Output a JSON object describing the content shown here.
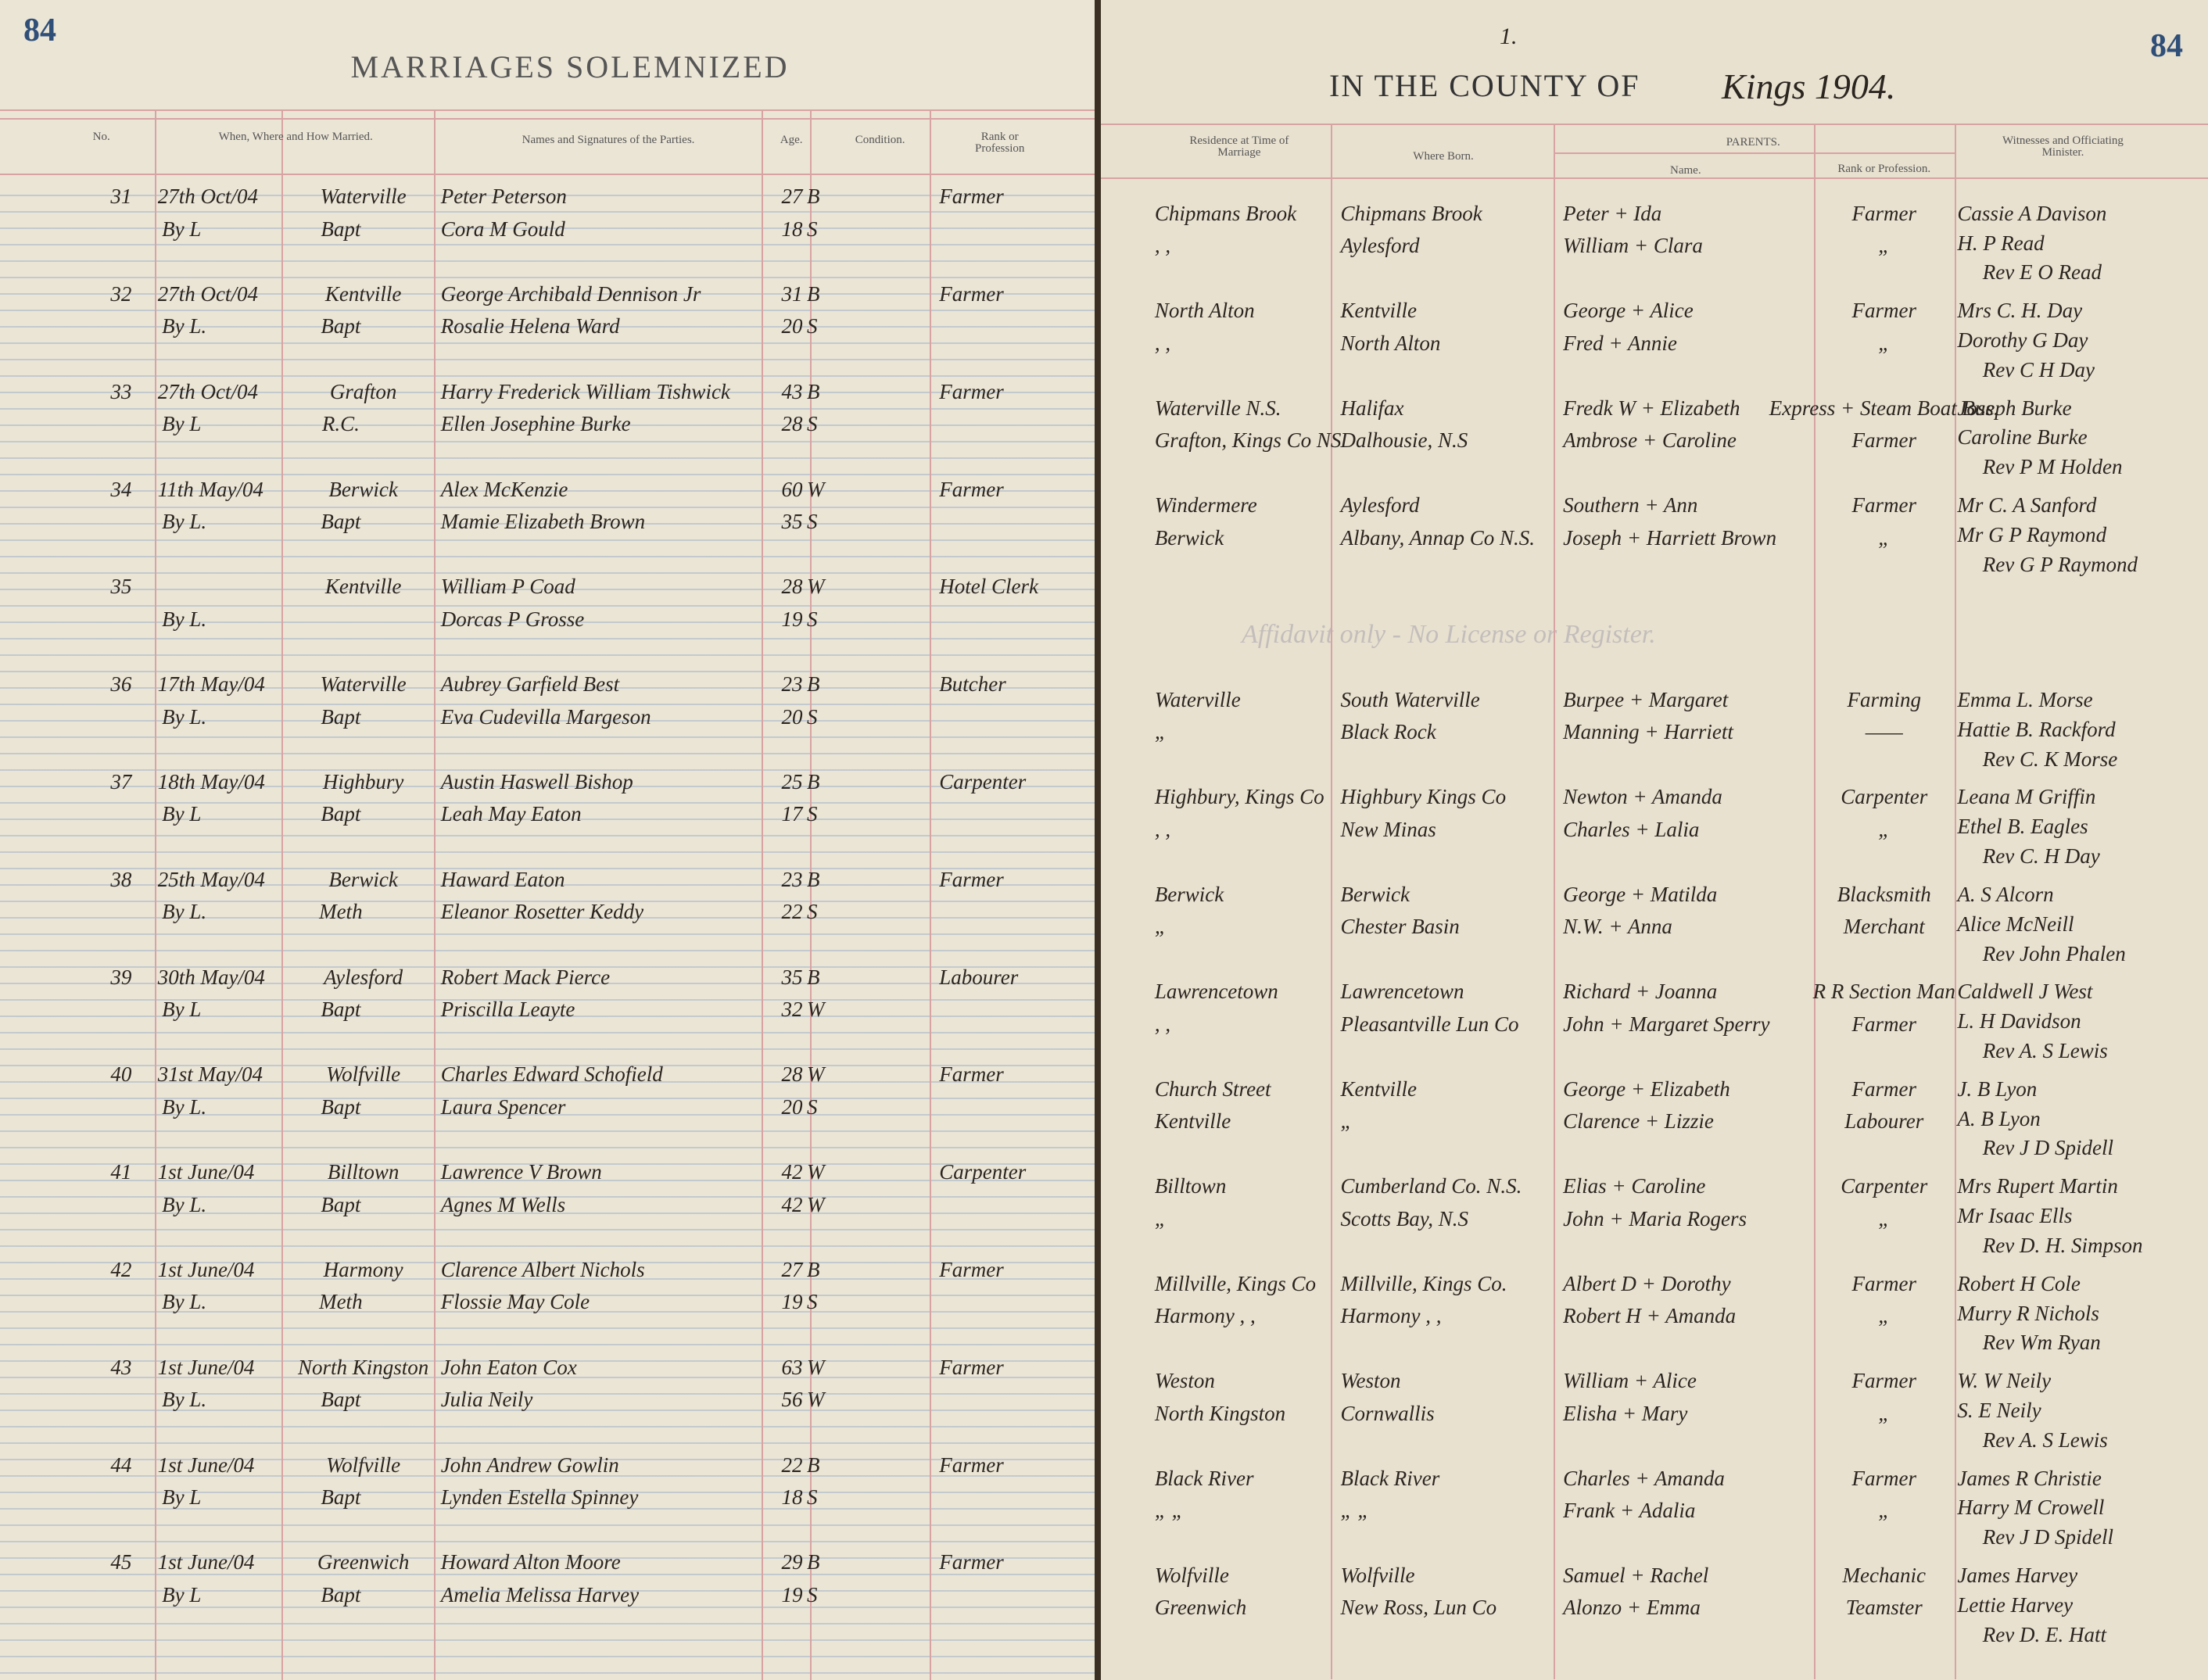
{
  "left_page": {
    "page_number": "84",
    "title": "MARRIAGES SOLEMNIZED",
    "headers": [
      "No.",
      "When, Where and How Married.",
      "Names and Signatures of the Parties.",
      "Age.",
      "Condition.",
      "Rank or Profession"
    ]
  },
  "right_page": {
    "page_number": "84",
    "mark": "1.",
    "title": "IN THE COUNTY OF",
    "title_handwritten": "Kings 1904.",
    "headers": {
      "residence": "Residence at Time of Marriage",
      "born": "Where Born.",
      "parents": "PARENTS.",
      "parents_name": "Name.",
      "parents_rank": "Rank or Profession.",
      "witnesses": "Witnesses and Officiating Minister."
    },
    "note": "Affidavit only - No License or Register."
  },
  "entries": [
    {
      "no": "31",
      "date": "27th Oct/04",
      "place": "Waterville",
      "license": "By L",
      "rite": "Bapt",
      "groom": "Peter Peterson",
      "bride": "Cora M Gould",
      "groom_age": "27",
      "groom_condition": "B",
      "bride_age": "18",
      "bride_condition": "S",
      "rank": "Farmer",
      "residence": [
        "Chipmans Brook",
        ", ,"
      ],
      "born": [
        "Chipmans Brook",
        "Aylesford"
      ],
      "parents": [
        "Peter + Ida",
        "William + Clara"
      ],
      "parents_rank": [
        "Farmer",
        "„"
      ],
      "witnesses": [
        "Cassie A Davison",
        "H. P Read",
        "Rev E O Read"
      ]
    },
    {
      "no": "32",
      "date": "27th Oct/04",
      "place": "Kentville",
      "license": "By L.",
      "rite": "Bapt",
      "groom": "George Archibald Dennison Jr",
      "bride": "Rosalie Helena Ward",
      "groom_age": "31",
      "groom_condition": "B",
      "bride_age": "20",
      "bride_condition": "S",
      "rank": "Farmer",
      "residence": [
        "North Alton",
        ", ,"
      ],
      "born": [
        "Kentville",
        "North Alton"
      ],
      "parents": [
        "George + Alice",
        "Fred + Annie"
      ],
      "parents_rank": [
        "Farmer",
        "„"
      ],
      "witnesses": [
        "Mrs C. H. Day",
        "Dorothy G Day",
        "Rev C H Day"
      ]
    },
    {
      "no": "33",
      "date": "27th Oct/04",
      "place": "Grafton",
      "license": "By L",
      "rite": "R.C.",
      "groom": "Harry Frederick William Tishwick",
      "bride": "Ellen Josephine Burke",
      "groom_age": "43",
      "groom_condition": "B",
      "bride_age": "28",
      "bride_condition": "S",
      "rank": "Farmer",
      "residence": [
        "Waterville N.S.",
        "Grafton, Kings Co NS"
      ],
      "born": [
        "Halifax",
        "Dalhousie, N.S"
      ],
      "parents": [
        "Fredk W + Elizabeth",
        "Ambrose + Caroline"
      ],
      "parents_rank": [
        "Express + Steam Boat Bus.",
        "Farmer"
      ],
      "witnesses": [
        "Joseph Burke",
        "Caroline Burke",
        "Rev P M Holden"
      ]
    },
    {
      "no": "34",
      "date": "11th May/04",
      "place": "Berwick",
      "license": "By L.",
      "rite": "Bapt",
      "groom": "Alex McKenzie",
      "bride": "Mamie Elizabeth Brown",
      "groom_age": "60",
      "groom_condition": "W",
      "bride_age": "35",
      "bride_condition": "S",
      "rank": "Farmer",
      "residence": [
        "Windermere",
        "Berwick"
      ],
      "born": [
        "Aylesford",
        "Albany, Annap Co N.S."
      ],
      "parents": [
        "Southern + Ann",
        "Joseph + Harriett Brown"
      ],
      "parents_rank": [
        "Farmer",
        "„"
      ],
      "witnesses": [
        "Mr C. A Sanford",
        "Mr G P Raymond",
        "Rev G P Raymond"
      ]
    },
    {
      "no": "35",
      "place": "Kentville",
      "license": "By L.",
      "groom": "William P Coad",
      "bride": "Dorcas P Grosse",
      "groom_age": "28",
      "groom_condition": "W",
      "bride_age": "19",
      "bride_condition": "S",
      "rank": "Hotel Clerk"
    },
    {
      "no": "36",
      "date": "17th May/04",
      "place": "Waterville",
      "license": "By L.",
      "rite": "Bapt",
      "groom": "Aubrey Garfield Best",
      "bride": "Eva Cudevilla Margeson",
      "groom_age": "23",
      "groom_condition": "B",
      "bride_age": "20",
      "bride_condition": "S",
      "rank": "Butcher",
      "residence": [
        "Waterville",
        "„"
      ],
      "born": [
        "South Waterville",
        "Black Rock"
      ],
      "parents": [
        "Burpee + Margaret",
        "Manning + Harriett"
      ],
      "parents_rank": [
        "Farming",
        "——"
      ],
      "witnesses": [
        "Emma L. Morse",
        "Hattie B. Rackford",
        "Rev C. K Morse"
      ]
    },
    {
      "no": "37",
      "date": "18th May/04",
      "place": "Highbury",
      "license": "By L",
      "rite": "Bapt",
      "groom": "Austin Haswell Bishop",
      "bride": "Leah May Eaton",
      "groom_age": "25",
      "groom_condition": "B",
      "bride_age": "17",
      "bride_condition": "S",
      "rank": "Carpenter",
      "residence": [
        "Highbury, Kings Co",
        ", ,"
      ],
      "born": [
        "Highbury Kings Co",
        "New Minas"
      ],
      "parents": [
        "Newton + Amanda",
        "Charles + Lalia"
      ],
      "parents_rank": [
        "Carpenter",
        "„"
      ],
      "witnesses": [
        "Leana M Griffin",
        "Ethel B. Eagles",
        "Rev C. H Day"
      ]
    },
    {
      "no": "38",
      "date": "25th May/04",
      "place": "Berwick",
      "license": "By L.",
      "rite": "Meth",
      "groom": "Haward Eaton",
      "bride": "Eleanor Rosetter Keddy",
      "groom_age": "23",
      "groom_condition": "B",
      "bride_age": "22",
      "bride_condition": "S",
      "rank": "Farmer",
      "residence": [
        "Berwick",
        "„"
      ],
      "born": [
        "Berwick",
        "Chester Basin"
      ],
      "parents": [
        "George + Matilda",
        "N.W. + Anna"
      ],
      "parents_rank": [
        "Blacksmith",
        "Merchant"
      ],
      "witnesses": [
        "A. S Alcorn",
        "Alice McNeill",
        "Rev John Phalen"
      ]
    },
    {
      "no": "39",
      "date": "30th May/04",
      "place": "Aylesford",
      "license": "By L",
      "rite": "Bapt",
      "groom": "Robert Mack Pierce",
      "bride": "Priscilla Leayte",
      "groom_age": "35",
      "groom_condition": "B",
      "bride_age": "32",
      "bride_condition": "W",
      "rank": "Labourer",
      "residence": [
        "Lawrencetown",
        ", ,"
      ],
      "born": [
        "Lawrencetown",
        "Pleasantville Lun Co"
      ],
      "parents": [
        "Richard + Joanna",
        "John + Margaret Sperry"
      ],
      "parents_rank": [
        "R R Section Man",
        "Farmer"
      ],
      "witnesses": [
        "Caldwell J West",
        "L. H Davidson",
        "Rev A. S Lewis"
      ]
    },
    {
      "no": "40",
      "date": "31st May/04",
      "place": "Wolfville",
      "license": "By L.",
      "rite": "Bapt",
      "groom": "Charles Edward Schofield",
      "bride": "Laura Spencer",
      "groom_age": "28",
      "groom_condition": "W",
      "bride_age": "20",
      "bride_condition": "S",
      "rank": "Farmer",
      "residence": [
        "Church Street",
        "Kentville"
      ],
      "born": [
        "Kentville",
        "„"
      ],
      "parents": [
        "George + Elizabeth",
        "Clarence + Lizzie"
      ],
      "parents_rank": [
        "Farmer",
        "Labourer"
      ],
      "witnesses": [
        "J. B Lyon",
        "A. B Lyon",
        "Rev J D Spidell"
      ]
    },
    {
      "no": "41",
      "date": "1st June/04",
      "place": "Billtown",
      "license": "By L.",
      "rite": "Bapt",
      "groom": "Lawrence V Brown",
      "bride": "Agnes M Wells",
      "groom_age": "42",
      "groom_condition": "W",
      "bride_age": "42",
      "bride_condition": "W",
      "rank": "Carpenter",
      "residence": [
        "Billtown",
        "„"
      ],
      "born": [
        "Cumberland Co. N.S.",
        "Scotts Bay, N.S"
      ],
      "parents": [
        "Elias + Caroline",
        "John + Maria Rogers"
      ],
      "parents_rank": [
        "Carpenter",
        "„"
      ],
      "witnesses": [
        "Mrs Rupert Martin",
        "Mr Isaac Ells",
        "Rev D. H. Simpson"
      ]
    },
    {
      "no": "42",
      "date": "1st June/04",
      "place": "Harmony",
      "license": "By L.",
      "rite": "Meth",
      "groom": "Clarence Albert Nichols",
      "bride": "Flossie May Cole",
      "groom_age": "27",
      "groom_condition": "B",
      "bride_age": "19",
      "bride_condition": "S",
      "rank": "Farmer",
      "residence": [
        "Millville, Kings Co",
        "Harmony , ,"
      ],
      "born": [
        "Millville, Kings Co.",
        "Harmony , ,"
      ],
      "parents": [
        "Albert D + Dorothy",
        "Robert H + Amanda"
      ],
      "parents_rank": [
        "Farmer",
        "„"
      ],
      "witnesses": [
        "Robert H Cole",
        "Murry R Nichols",
        "Rev Wm Ryan"
      ]
    },
    {
      "no": "43",
      "date": "1st June/04",
      "place": "North Kingston",
      "license": "By L.",
      "rite": "Bapt",
      "groom": "John Eaton Cox",
      "bride": "Julia Neily",
      "groom_age": "63",
      "groom_condition": "W",
      "bride_age": "56",
      "bride_condition": "W",
      "rank": "Farmer",
      "residence": [
        "Weston",
        "North Kingston"
      ],
      "born": [
        "Weston",
        "Cornwallis"
      ],
      "parents": [
        "William + Alice",
        "Elisha + Mary"
      ],
      "parents_rank": [
        "Farmer",
        "„"
      ],
      "witnesses": [
        "W. W Neily",
        "S. E Neily",
        "Rev A. S Lewis"
      ]
    },
    {
      "no": "44",
      "date": "1st June/04",
      "place": "Wolfville",
      "license": "By L",
      "rite": "Bapt",
      "groom": "John Andrew Gowlin",
      "bride": "Lynden Estella Spinney",
      "groom_age": "22",
      "groom_condition": "B",
      "bride_age": "18",
      "bride_condition": "S",
      "rank": "Farmer",
      "residence": [
        "Black River",
        "„ „"
      ],
      "born": [
        "Black River",
        "„ „"
      ],
      "parents": [
        "Charles + Amanda",
        "Frank + Adalia"
      ],
      "parents_rank": [
        "Farmer",
        "„"
      ],
      "witnesses": [
        "James R Christie",
        "Harry M Crowell",
        "Rev J D Spidell"
      ]
    },
    {
      "no": "45",
      "date": "1st June/04",
      "place": "Greenwich",
      "license": "By L",
      "rite": "Bapt",
      "groom": "Howard Alton Moore",
      "bride": "Amelia Melissa Harvey",
      "groom_age": "29",
      "groom_condition": "B",
      "bride_age": "19",
      "bride_condition": "S",
      "rank": "Farmer",
      "residence": [
        "Wolfville",
        "Greenwich"
      ],
      "born": [
        "Wolfville",
        "New Ross, Lun Co"
      ],
      "parents": [
        "Samuel + Rachel",
        "Alonzo + Emma"
      ],
      "parents_rank": [
        "Mechanic",
        "Teamster"
      ],
      "witnesses": [
        "James Harvey",
        "Lettie Harvey",
        "Rev D. E. Hatt"
      ]
    }
  ]
}
